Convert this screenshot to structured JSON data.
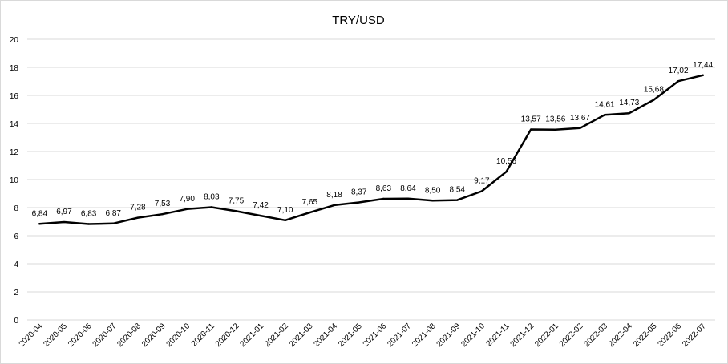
{
  "chart_data": {
    "type": "line",
    "title": "TRY/USD",
    "xlabel": "",
    "ylabel": "",
    "ylim": [
      0,
      20
    ],
    "yticks": [
      0,
      2,
      4,
      6,
      8,
      10,
      12,
      14,
      16,
      18,
      20
    ],
    "grid": true,
    "legend": "none",
    "line_color": "#000000",
    "categories": [
      "2020-04",
      "2020-05",
      "2020-06",
      "2020-07",
      "2020-08",
      "2020-09",
      "2020-10",
      "2020-11",
      "2020-12",
      "2021-01",
      "2021-02",
      "2021-03",
      "2021-04",
      "2021-05",
      "2021-06",
      "2021-07",
      "2021-08",
      "2021-09",
      "2021-10",
      "2021-11",
      "2021-12",
      "2022-01",
      "2022-02",
      "2022-03",
      "2022-04",
      "2022-05",
      "2022-06",
      "2022-07"
    ],
    "values": [
      6.84,
      6.97,
      6.83,
      6.87,
      7.28,
      7.53,
      7.9,
      8.03,
      7.75,
      7.42,
      7.1,
      7.65,
      8.18,
      8.37,
      8.63,
      8.64,
      8.5,
      8.54,
      9.17,
      10.56,
      13.57,
      13.56,
      13.67,
      14.61,
      14.73,
      15.68,
      17.02,
      17.44
    ],
    "data_labels": [
      "6,84",
      "6,97",
      "6,83",
      "6,87",
      "7,28",
      "7,53",
      "7,90",
      "8,03",
      "7,75",
      "7,42",
      "7,10",
      "7,65",
      "8,18",
      "8,37",
      "8,63",
      "8,64",
      "8,50",
      "8,54",
      "9,17",
      "10,56",
      "13,57",
      "13,56",
      "13,67",
      "14,61",
      "14,73",
      "15,68",
      "17,02",
      "17,44"
    ]
  }
}
